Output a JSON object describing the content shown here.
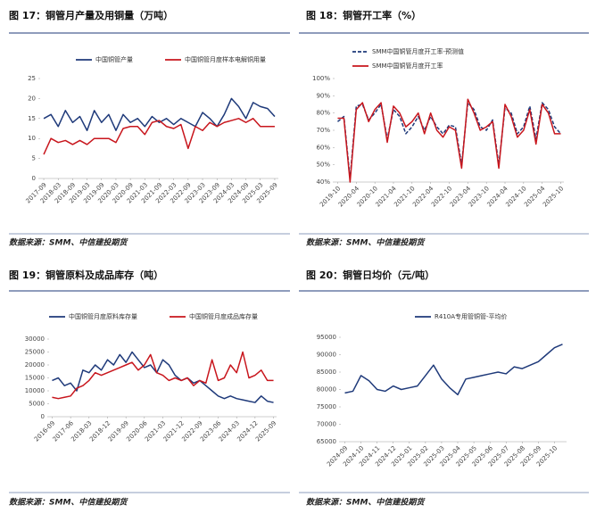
{
  "chart_data": [
    {
      "type": "line",
      "title": "图 17：铜管月产量及用铜量（万吨）",
      "source": "数据来源：SMM、中信建投期货",
      "categories": [
        "2017-09",
        null,
        "2018-03",
        null,
        "2018-09",
        null,
        "2019-03",
        null,
        "2019-09",
        null,
        "2020-03",
        null,
        "2020-09",
        null,
        "2021-03",
        null,
        "2021-09",
        null,
        "2022-03",
        null,
        "2022-09",
        null,
        "2023-03",
        null,
        "2023-09",
        null,
        "2024-03",
        null,
        "2024-09",
        null,
        "2025-03",
        null,
        "2025-09"
      ],
      "series": [
        {
          "name": "中国铜管产量",
          "color": "#1f3a7a",
          "values": [
            15,
            16,
            13,
            17,
            14,
            15.5,
            12,
            17,
            14,
            16,
            12,
            16,
            14,
            15,
            13,
            15.5,
            14,
            15,
            13.5,
            15,
            14,
            13,
            16.5,
            15,
            13,
            16,
            20,
            18,
            15,
            19,
            18,
            17.5,
            15.5
          ]
        },
        {
          "name": "中国铜管月度样本电解铜用量",
          "color": "#c8161d",
          "values": [
            6,
            10,
            9,
            9.5,
            8.5,
            9.5,
            8.5,
            10,
            10,
            10,
            9,
            12.5,
            13,
            13,
            11,
            14,
            14.5,
            13,
            12.5,
            13.5,
            7.5,
            13,
            12,
            14,
            13,
            14,
            14.5,
            15,
            14,
            15,
            13,
            13,
            13
          ]
        }
      ],
      "ylim": [
        0,
        25
      ],
      "yticks": [
        0,
        5,
        10,
        15,
        20,
        25
      ]
    },
    {
      "type": "line",
      "title": "图 18：铜管开工率（%）",
      "source": "数据来源：SMM、中信建投期货",
      "categories": [
        "2019-10",
        null,
        null,
        "2020-04",
        null,
        null,
        "2020-10",
        null,
        null,
        "2021-04",
        null,
        null,
        "2021-10",
        null,
        null,
        "2022-04",
        null,
        null,
        "2022-10",
        null,
        null,
        "2023-04",
        null,
        null,
        "2023-10",
        null,
        null,
        "2024-04",
        null,
        null,
        "2024-10",
        null,
        null,
        "2025-04",
        null,
        null,
        "2025-10"
      ],
      "series": [
        {
          "name": "SMM中国铜管月度开工率-预测值",
          "color": "#1f3a7a",
          "dash": true,
          "values": [
            75,
            78,
            42,
            84,
            85,
            76,
            80,
            85,
            65,
            82,
            78,
            68,
            72,
            78,
            70,
            78,
            72,
            68,
            73,
            72,
            50,
            86,
            82,
            72,
            70,
            76,
            50,
            83,
            80,
            68,
            72,
            84,
            65,
            86,
            82,
            72,
            68
          ]
        },
        {
          "name": "SMM中国铜管月度开工率",
          "color": "#c8161d",
          "values": [
            77,
            77,
            40,
            82,
            86,
            75,
            82,
            86,
            63,
            84,
            80,
            72,
            75,
            80,
            68,
            80,
            70,
            66,
            72,
            70,
            48,
            88,
            80,
            70,
            72,
            75,
            48,
            85,
            78,
            66,
            70,
            82,
            62,
            85,
            80,
            68,
            68
          ]
        }
      ],
      "ylim": [
        40,
        100
      ],
      "yticks": [
        {
          "value": 40,
          "label": "40%"
        },
        {
          "value": 50,
          "label": "50%"
        },
        {
          "value": 60,
          "label": "60%"
        },
        {
          "value": 70,
          "label": "70%"
        },
        {
          "value": 80,
          "label": "80%"
        },
        {
          "value": 90,
          "label": "90%"
        },
        {
          "value": 100,
          "label": "100%"
        }
      ]
    },
    {
      "type": "line",
      "title": "图 19：铜管原料及成品库存（吨）",
      "source": "数据来源：SMM、中信建投期货",
      "categories": [
        "2016-09",
        null,
        null,
        "2017-06",
        null,
        null,
        "2018-03",
        null,
        null,
        "2018-12",
        null,
        null,
        "2019-09",
        null,
        null,
        "2020-06",
        null,
        null,
        "2021-03",
        null,
        null,
        "2021-12",
        null,
        null,
        "2022-09",
        null,
        null,
        "2023-06",
        null,
        null,
        "2024-03",
        null,
        null,
        "2024-12",
        null,
        null,
        "2025-09"
      ],
      "series": [
        {
          "name": "中国铜管月度原料库存量",
          "color": "#1f3a7a",
          "values": [
            14000,
            15000,
            12000,
            13000,
            10000,
            18000,
            17000,
            20000,
            18000,
            22000,
            20000,
            24000,
            21000,
            25000,
            22000,
            19000,
            20000,
            17000,
            22000,
            20000,
            16000,
            14000,
            15000,
            13000,
            14000,
            12000,
            10000,
            8000,
            7000,
            8000,
            7000,
            6500,
            6000,
            5500,
            8000,
            6000,
            5500
          ]
        },
        {
          "name": "中国铜管月度成品库存量",
          "color": "#c8161d",
          "values": [
            7500,
            7000,
            7500,
            8000,
            11000,
            12000,
            14000,
            17000,
            16000,
            17000,
            18000,
            19000,
            20000,
            21000,
            18000,
            20000,
            24000,
            17000,
            16000,
            14000,
            15000,
            14000,
            15000,
            12000,
            14000,
            13000,
            22000,
            14000,
            15000,
            20000,
            17000,
            25000,
            15000,
            16000,
            18000,
            14000,
            14000
          ]
        }
      ],
      "ylim": [
        0,
        30000
      ],
      "yticks": [
        0,
        5000,
        10000,
        15000,
        20000,
        25000,
        30000
      ]
    },
    {
      "type": "line",
      "title": "图 20：铜管日均价（元/吨）",
      "source": "数据来源：SMM、中信建投期货",
      "categories": [
        "2024-09",
        null,
        "2024-10",
        null,
        "2024-11",
        null,
        "2024-12",
        null,
        "2025-01",
        null,
        "2025-02",
        null,
        "2025-03",
        null,
        "2025-04",
        null,
        "2025-05",
        null,
        "2025-06",
        null,
        "2025-07",
        null,
        "2025-08",
        null,
        "2025-09",
        null,
        "2025-10",
        null
      ],
      "series": [
        {
          "name": "R410A专用管铜管-平均价",
          "color": "#1f3a7a",
          "values": [
            79000,
            79500,
            84000,
            82500,
            80000,
            79500,
            81000,
            80000,
            80500,
            81000,
            84000,
            87000,
            83000,
            80500,
            78500,
            83000,
            83500,
            84000,
            84500,
            85000,
            84500,
            86500,
            86000,
            87000,
            88000,
            90000,
            92000,
            93000
          ]
        }
      ],
      "ylim": [
        65000,
        95000
      ],
      "yticks": [
        65000,
        70000,
        75000,
        80000,
        85000,
        90000,
        95000
      ]
    }
  ]
}
